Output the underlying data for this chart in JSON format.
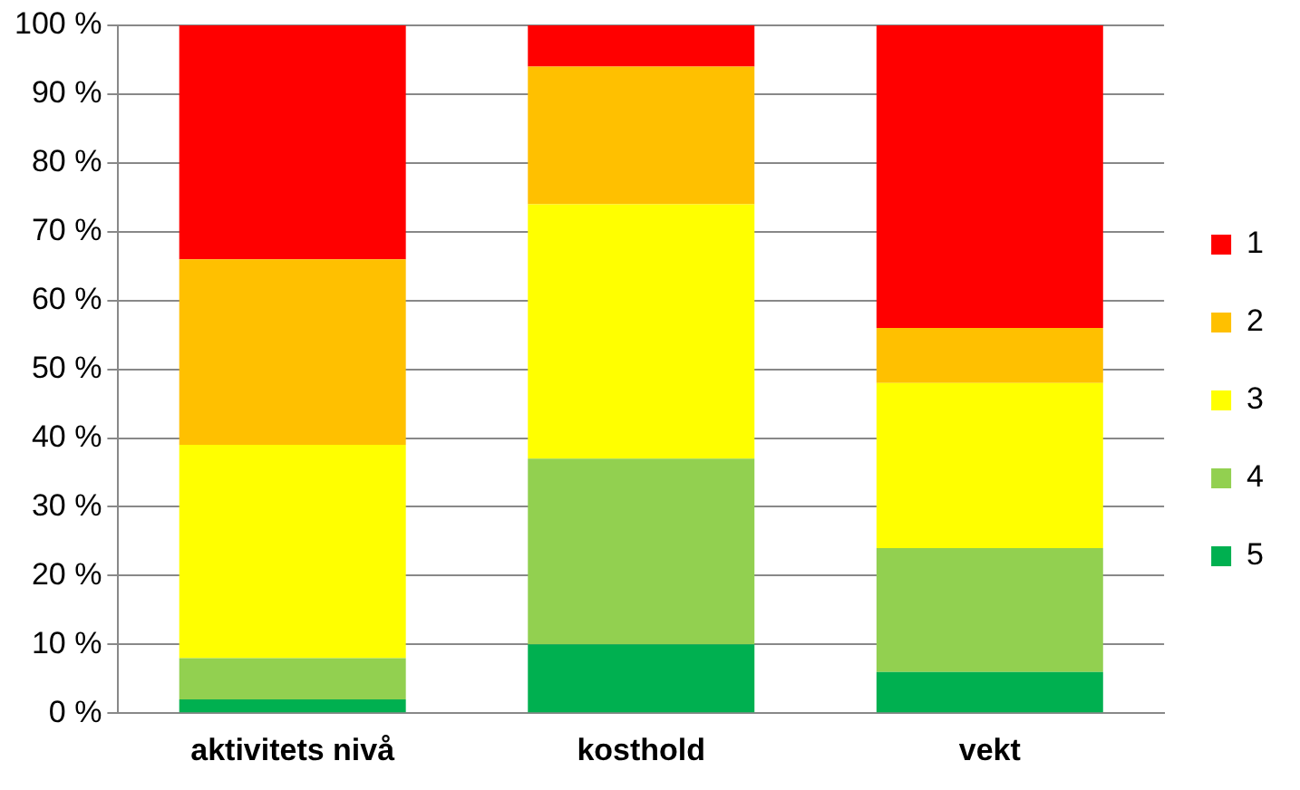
{
  "chart_data": {
    "type": "bar",
    "stacked": true,
    "categories": [
      "aktivitets nivå",
      "kosthold",
      "vekt"
    ],
    "series": [
      {
        "name": "5",
        "color": "#00b050",
        "values": [
          2,
          10,
          6
        ]
      },
      {
        "name": "4",
        "color": "#92d050",
        "values": [
          6,
          27,
          18
        ]
      },
      {
        "name": "3",
        "color": "#ffff00",
        "values": [
          31,
          37,
          24
        ]
      },
      {
        "name": "2",
        "color": "#ffc000",
        "values": [
          27,
          20,
          8
        ]
      },
      {
        "name": "1",
        "color": "#ff0000",
        "values": [
          34,
          6,
          44
        ]
      }
    ],
    "ylim": [
      0,
      100
    ],
    "yticks": [
      {
        "value": 0,
        "label": "0 %"
      },
      {
        "value": 10,
        "label": "10 %"
      },
      {
        "value": 20,
        "label": "20 %"
      },
      {
        "value": 30,
        "label": "30 %"
      },
      {
        "value": 40,
        "label": "40 %"
      },
      {
        "value": 50,
        "label": "50 %"
      },
      {
        "value": 60,
        "label": "60 %"
      },
      {
        "value": 70,
        "label": "70 %"
      },
      {
        "value": 80,
        "label": "80 %"
      },
      {
        "value": 90,
        "label": "90 %"
      },
      {
        "value": 100,
        "label": "100 %"
      }
    ],
    "grid": "y",
    "legend": "right"
  }
}
